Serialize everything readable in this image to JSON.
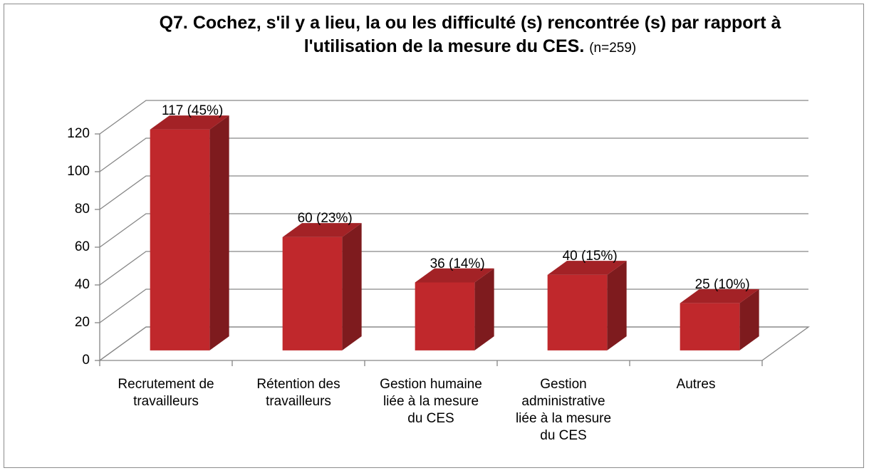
{
  "chart_data": {
    "type": "bar3d",
    "title": "Q7. Cochez, s'il y a lieu, la ou les difficulté (s) rencontrée (s) par rapport à l'utilisation de la mesure du CES.",
    "subtitle": "(n=259)",
    "categories": [
      "Recrutement de travailleurs",
      "Rétention des travailleurs",
      "Gestion humaine liée à la mesure du CES",
      "Gestion administrative liée à la mesure du CES",
      "Autres"
    ],
    "values": [
      117,
      60,
      36,
      40,
      25
    ],
    "value_labels": [
      "117 (45%)",
      "60 (23%)",
      "36 (14%)",
      "40 (15%)",
      "25 (10%)"
    ],
    "color": "#c0282c",
    "ylim": [
      0,
      120
    ],
    "yticks": [
      0,
      20,
      40,
      60,
      80,
      100,
      120
    ],
    "grid": true
  }
}
